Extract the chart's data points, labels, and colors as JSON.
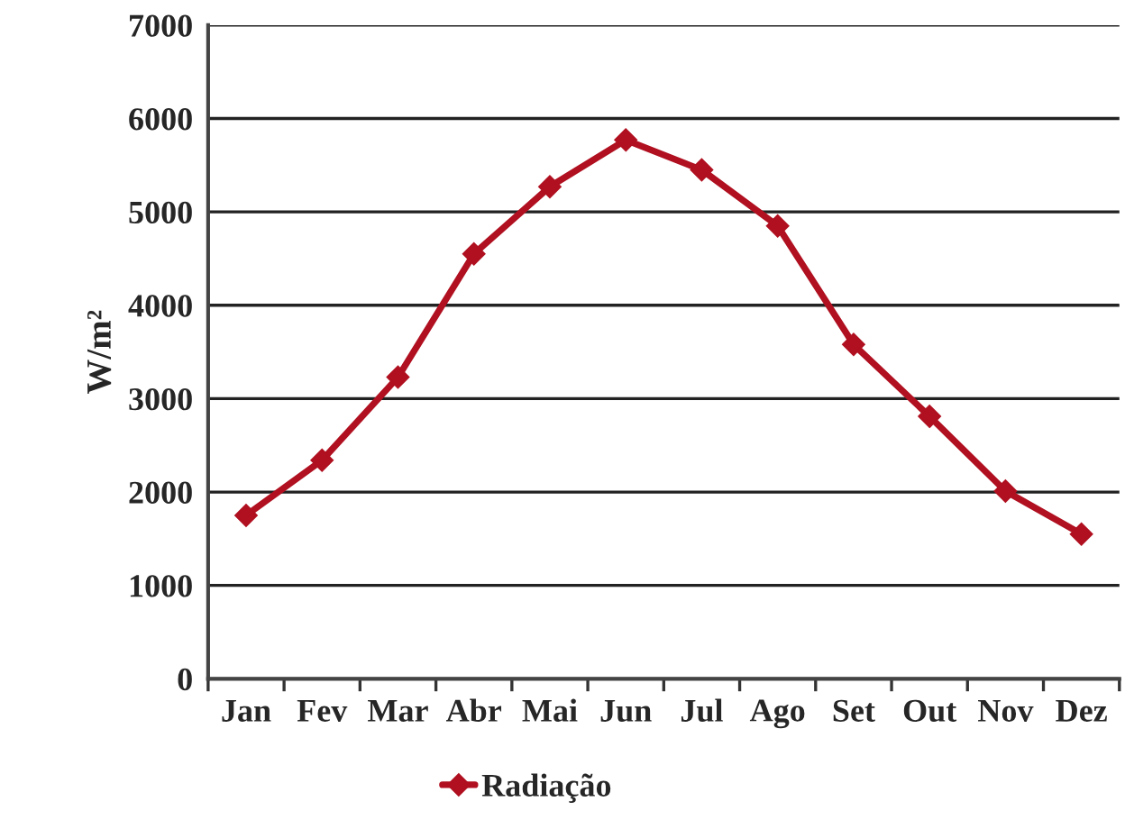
{
  "chart_data": {
    "type": "line",
    "ylabel": "W/m²",
    "categories": [
      "Jan",
      "Fev",
      "Mar",
      "Abr",
      "Mai",
      "Jun",
      "Jul",
      "Ago",
      "Set",
      "Out",
      "Nov",
      "Dez"
    ],
    "series": [
      {
        "name": "Radiação",
        "color": "#b01020",
        "values": [
          1750,
          2340,
          3230,
          4550,
          5270,
          5770,
          5450,
          4850,
          3580,
          2810,
          2010,
          1550
        ]
      }
    ],
    "ylim": [
      0,
      7000
    ],
    "yticks": [
      0,
      1000,
      2000,
      3000,
      4000,
      5000,
      6000,
      7000
    ],
    "grid": "y",
    "legend": "bottom",
    "marker": "diamond",
    "line_style": "solid"
  }
}
